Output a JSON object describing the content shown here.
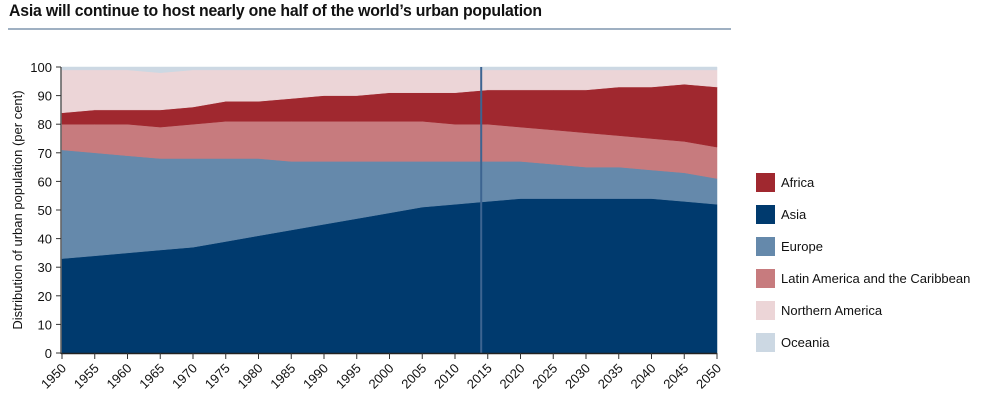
{
  "title": "Asia will continue to host nearly one half of the world’s urban population",
  "chart_data": {
    "type": "area",
    "stacked": true,
    "title": "Asia will continue to host nearly one half of the world’s urban population",
    "xlabel": "",
    "ylabel": "Distribution of urban population (per cent)",
    "ylim": [
      0,
      100
    ],
    "yticks": [
      0,
      10,
      20,
      30,
      40,
      50,
      60,
      70,
      80,
      90,
      100
    ],
    "x": [
      1950,
      1955,
      1960,
      1965,
      1970,
      1975,
      1980,
      1985,
      1990,
      1995,
      2000,
      2005,
      2010,
      2015,
      2020,
      2025,
      2030,
      2035,
      2040,
      2045,
      2050
    ],
    "xtick_labels": [
      "1950",
      "1955",
      "1960",
      "1965",
      "1970",
      "1975",
      "1980",
      "1985",
      "1990",
      "1995",
      "2000",
      "2005",
      "2010",
      "2015",
      "2020",
      "2025",
      "2030",
      "2035",
      "2040",
      "2045",
      "2050"
    ],
    "reference_line_x": 2014,
    "series": [
      {
        "name": "Asia",
        "color": "#003a6e",
        "values": [
          33,
          34,
          35,
          36,
          37,
          39,
          41,
          43,
          45,
          47,
          49,
          51,
          52,
          53,
          54,
          54,
          54,
          54,
          54,
          53,
          52
        ]
      },
      {
        "name": "Europe",
        "color": "#6589ab",
        "values": [
          38,
          36,
          34,
          32,
          31,
          29,
          27,
          24,
          22,
          20,
          18,
          16,
          15,
          14,
          13,
          12,
          11,
          11,
          10,
          10,
          9
        ]
      },
      {
        "name": "Latin America and the Caribbean",
        "color": "#c77b7e",
        "values": [
          9,
          10,
          11,
          11,
          12,
          13,
          13,
          14,
          14,
          14,
          14,
          14,
          13,
          13,
          12,
          12,
          12,
          11,
          11,
          11,
          11
        ]
      },
      {
        "name": "Africa",
        "color": "#a0282f",
        "values": [
          4,
          5,
          5,
          6,
          6,
          7,
          7,
          8,
          9,
          9,
          10,
          10,
          11,
          12,
          13,
          14,
          15,
          17,
          18,
          20,
          21
        ]
      },
      {
        "name": "Northern America",
        "color": "#ecd5d7",
        "values": [
          15,
          14,
          14,
          13,
          13,
          11,
          11,
          10,
          9,
          9,
          8,
          8,
          8,
          7,
          7,
          7,
          7,
          6,
          6,
          5,
          6
        ]
      },
      {
        "name": "Oceania",
        "color": "#ccd8e3",
        "values": [
          1,
          1,
          1,
          2,
          1,
          1,
          1,
          1,
          1,
          1,
          1,
          1,
          1,
          1,
          1,
          1,
          1,
          1,
          1,
          1,
          1
        ]
      }
    ],
    "legend": {
      "position": "right",
      "order": [
        "Africa",
        "Asia",
        "Europe",
        "Latin America and the Caribbean",
        "Northern America",
        "Oceania"
      ]
    },
    "grid": false
  }
}
